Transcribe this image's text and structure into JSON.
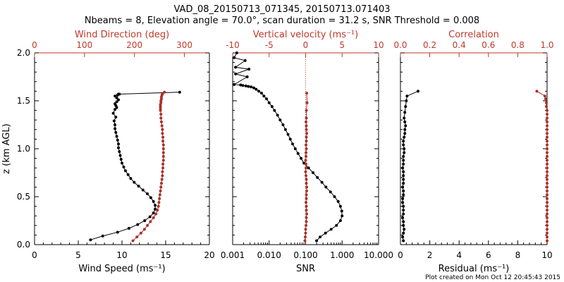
{
  "title_line1": "VAD_08_20150713_071345, 20150713.071403",
  "title_line2": "Nbeams = 8, Elevation angle = 70.0°, scan duration = 31.2 s, SNR Threshold = 0.008",
  "footer": "Plot created on Mon Oct 12 20:45:43 2015",
  "colors": {
    "black_series": "#000000",
    "red_series": "#a93226",
    "red_axis": "#c0392b"
  },
  "chart_data": [
    {
      "type": "line",
      "panel": "left",
      "ylabel": "z (km AGL)",
      "ylim": [
        0,
        2.0
      ],
      "yticks": [
        "0.0",
        "0.5",
        "1.0",
        "1.5",
        "2.0"
      ],
      "xlabel": "Wind Speed (ms⁻¹)",
      "xlim": [
        0,
        20
      ],
      "xticks": [
        "0",
        "5",
        "10",
        "15",
        "20"
      ],
      "top_xlabel": "Wind Direction (deg)",
      "top_xlim": [
        0,
        350
      ],
      "top_xticks": [
        "0",
        "100",
        "200",
        "300"
      ],
      "series": [
        {
          "name": "Wind Speed (ms⁻¹)",
          "color": "black",
          "x": [
            6.4,
            7.8,
            9.5,
            10.8,
            11.8,
            12.6,
            13.2,
            13.6,
            13.8,
            13.8,
            13.6,
            13.3,
            12.9,
            12.4,
            11.9,
            11.4,
            11.0,
            10.7,
            10.4,
            10.2,
            10.0,
            9.9,
            9.8,
            9.7,
            9.6,
            9.6,
            9.5,
            9.4,
            9.3,
            9.2,
            9.2,
            9.1,
            9.3,
            9.0,
            9.2,
            9.4,
            9.3,
            9.2,
            9.4,
            9.6,
            9.4,
            9.2,
            9.5,
            9.6,
            9.7,
            16.6
          ],
          "y": [
            0.05,
            0.09,
            0.13,
            0.17,
            0.21,
            0.25,
            0.29,
            0.33,
            0.37,
            0.41,
            0.45,
            0.49,
            0.53,
            0.57,
            0.61,
            0.65,
            0.69,
            0.73,
            0.77,
            0.81,
            0.85,
            0.89,
            0.93,
            0.97,
            1.01,
            1.05,
            1.09,
            1.13,
            1.17,
            1.21,
            1.25,
            1.29,
            1.33,
            1.37,
            1.41,
            1.43,
            1.45,
            1.47,
            1.49,
            1.51,
            1.53,
            1.55,
            1.56,
            1.57,
            1.57,
            1.59
          ]
        },
        {
          "name": "Wind Direction (deg)",
          "color": "red",
          "axis": "top",
          "x": [
            197,
            205,
            213,
            220,
            226,
            232,
            238,
            243,
            246,
            248,
            249,
            250,
            251,
            252,
            253,
            254,
            255,
            256,
            256,
            257,
            257,
            258,
            258,
            258,
            258,
            258,
            257,
            257,
            256,
            256,
            255,
            254,
            253,
            253,
            252,
            252,
            252,
            252,
            253,
            253,
            254,
            254,
            255,
            256,
            260
          ],
          "y": [
            0.04,
            0.08,
            0.12,
            0.16,
            0.2,
            0.24,
            0.28,
            0.32,
            0.36,
            0.4,
            0.44,
            0.48,
            0.52,
            0.56,
            0.6,
            0.64,
            0.68,
            0.72,
            0.76,
            0.8,
            0.84,
            0.88,
            0.92,
            0.96,
            1.0,
            1.04,
            1.08,
            1.12,
            1.16,
            1.2,
            1.24,
            1.28,
            1.32,
            1.36,
            1.4,
            1.42,
            1.44,
            1.46,
            1.48,
            1.5,
            1.52,
            1.54,
            1.56,
            1.57,
            1.59
          ]
        }
      ]
    },
    {
      "type": "line",
      "panel": "middle",
      "ylim": [
        0,
        2.0
      ],
      "xlabel": "SNR",
      "xscale": "log",
      "xlim": [
        0.001,
        10.0
      ],
      "xticks": [
        "0.001",
        "0.010",
        "0.100",
        "1.000",
        "10.000"
      ],
      "top_xlabel": "Vertical velocity (ms⁻¹)",
      "top_xlim": [
        -10,
        10
      ],
      "top_xticks": [
        "-10",
        "-5",
        "0",
        "5",
        "10"
      ],
      "series": [
        {
          "name": "SNR",
          "color": "black",
          "x": [
            0.2,
            0.25,
            0.35,
            0.5,
            0.7,
            0.9,
            1.0,
            0.98,
            0.9,
            0.78,
            0.62,
            0.48,
            0.36,
            0.28,
            0.21,
            0.16,
            0.12,
            0.09,
            0.075,
            0.062,
            0.052,
            0.044,
            0.038,
            0.033,
            0.028,
            0.024,
            0.02,
            0.017,
            0.014,
            0.012,
            0.01,
            0.0085,
            0.0072,
            0.0062,
            0.0052,
            0.0044,
            0.0038,
            0.0032,
            0.0027,
            0.0023,
            0.0019,
            0.00165,
            0.0011,
            0.0025,
            0.0012,
            0.0028,
            0.0012,
            0.0022,
            0.0011,
            0.0013
          ],
          "y": [
            0.04,
            0.08,
            0.12,
            0.16,
            0.2,
            0.25,
            0.3,
            0.35,
            0.4,
            0.45,
            0.5,
            0.55,
            0.6,
            0.65,
            0.7,
            0.75,
            0.8,
            0.85,
            0.9,
            0.95,
            1.0,
            1.05,
            1.1,
            1.15,
            1.2,
            1.25,
            1.3,
            1.35,
            1.4,
            1.44,
            1.48,
            1.52,
            1.55,
            1.58,
            1.6,
            1.62,
            1.635,
            1.645,
            1.65,
            1.655,
            1.66,
            1.665,
            1.67,
            1.75,
            1.78,
            1.83,
            1.85,
            1.92,
            1.95,
            2.0
          ]
        },
        {
          "name": "Vertical velocity (ms⁻¹)",
          "color": "red",
          "axis": "top",
          "x": [
            -0.1,
            -0.05,
            0.0,
            0.0,
            0.05,
            0.1,
            0.1,
            0.15,
            0.1,
            0.1,
            0.05,
            0.1,
            0.1,
            0.15,
            0.15,
            0.1,
            0.1,
            0.05,
            0.0,
            0.05,
            0.05,
            0.0,
            0.05,
            0.05,
            0.1,
            0.05,
            0.1,
            0.1,
            0.15,
            0.1,
            0.1,
            0.05,
            0.1,
            0.1,
            0.2,
            0.15
          ],
          "y": [
            0.04,
            0.08,
            0.12,
            0.16,
            0.2,
            0.24,
            0.28,
            0.32,
            0.36,
            0.4,
            0.44,
            0.48,
            0.52,
            0.56,
            0.6,
            0.64,
            0.68,
            0.72,
            0.76,
            0.8,
            0.84,
            0.88,
            0.92,
            0.96,
            1.0,
            1.04,
            1.08,
            1.12,
            1.16,
            1.2,
            1.24,
            1.28,
            1.32,
            1.4,
            1.48,
            1.58
          ]
        }
      ]
    },
    {
      "type": "line",
      "panel": "right",
      "ylim": [
        0,
        2.0
      ],
      "xlabel": "Residual (ms⁻¹)",
      "xlim": [
        0,
        10
      ],
      "xticks": [
        "0",
        "2",
        "4",
        "6",
        "8",
        "10"
      ],
      "top_xlabel": "Correlation",
      "top_xlim": [
        0,
        1.0
      ],
      "top_xticks": [
        "0.0",
        "0.2",
        "0.4",
        "0.6",
        "0.8",
        "1.0"
      ],
      "series": [
        {
          "name": "Residual (ms⁻¹)",
          "color": "black",
          "x": [
            0.2,
            0.15,
            0.2,
            0.25,
            0.2,
            0.2,
            0.15,
            0.2,
            0.2,
            0.2,
            0.15,
            0.15,
            0.2,
            0.2,
            0.15,
            0.2,
            0.2,
            0.2,
            0.2,
            0.15,
            0.2,
            0.2,
            0.2,
            0.25,
            0.25,
            0.2,
            0.2,
            0.25,
            0.3,
            0.3,
            0.35,
            0.3,
            0.25,
            0.3,
            0.35,
            0.4,
            0.45,
            1.2
          ],
          "y": [
            0.04,
            0.08,
            0.12,
            0.16,
            0.2,
            0.24,
            0.28,
            0.32,
            0.36,
            0.4,
            0.44,
            0.48,
            0.52,
            0.56,
            0.6,
            0.64,
            0.68,
            0.72,
            0.76,
            0.8,
            0.84,
            0.88,
            0.92,
            0.96,
            1.0,
            1.04,
            1.08,
            1.12,
            1.16,
            1.2,
            1.24,
            1.28,
            1.32,
            1.38,
            1.44,
            1.5,
            1.55,
            1.6
          ]
        },
        {
          "name": "Correlation",
          "color": "red",
          "axis": "top",
          "x": [
            1.0,
            1.0,
            1.0,
            1.0,
            1.0,
            1.0,
            1.0,
            1.0,
            1.0,
            1.0,
            1.0,
            1.0,
            1.0,
            1.0,
            1.0,
            1.0,
            1.0,
            1.0,
            1.0,
            1.0,
            1.0,
            1.0,
            1.0,
            1.0,
            1.0,
            1.0,
            1.0,
            1.0,
            1.0,
            1.0,
            1.0,
            1.0,
            1.0,
            1.0,
            1.0,
            0.995,
            0.995,
            0.99,
            0.985,
            0.93
          ],
          "y": [
            0.04,
            0.08,
            0.12,
            0.16,
            0.2,
            0.24,
            0.28,
            0.32,
            0.36,
            0.4,
            0.44,
            0.48,
            0.52,
            0.56,
            0.6,
            0.64,
            0.68,
            0.72,
            0.76,
            0.8,
            0.84,
            0.88,
            0.92,
            0.96,
            1.0,
            1.04,
            1.08,
            1.12,
            1.16,
            1.2,
            1.24,
            1.28,
            1.32,
            1.36,
            1.4,
            1.44,
            1.48,
            1.52,
            1.55,
            1.6
          ]
        }
      ]
    }
  ]
}
